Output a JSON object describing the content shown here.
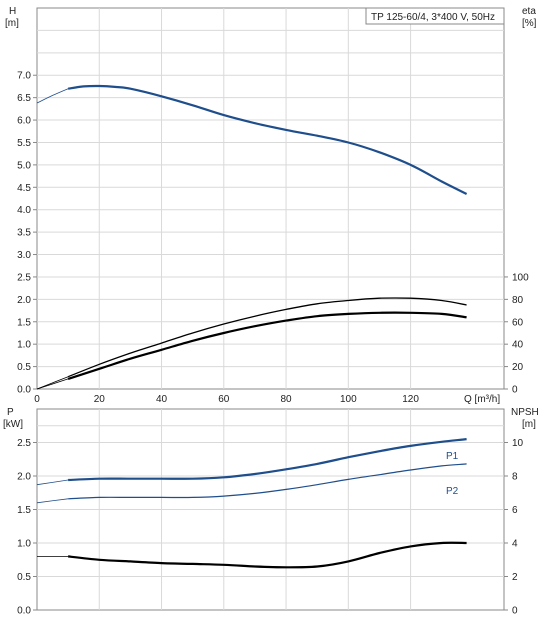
{
  "chart_data": [
    {
      "type": "line",
      "legend_box": "TP 125-60/4, 3*400 V, 50Hz",
      "x_axis": {
        "label": "Q [m³/h]",
        "ticks": [
          "0",
          "20",
          "40",
          "60",
          "80",
          "100",
          "120"
        ],
        "range": [
          0,
          150
        ]
      },
      "y_left": {
        "label_top": "H",
        "label_unit": "[m]",
        "ticks": [
          "0.0",
          "0.5",
          "1.0",
          "1.5",
          "2.0",
          "2.5",
          "3.0",
          "3.5",
          "4.0",
          "4.5",
          "5.0",
          "5.5",
          "6.0",
          "6.5",
          "7.0"
        ],
        "range": [
          0,
          8.5
        ]
      },
      "y_right": {
        "label_top": "eta",
        "label_unit": "[%]",
        "ticks": [
          "0",
          "20",
          "40",
          "60",
          "80",
          "100"
        ],
        "range": [
          0,
          100
        ]
      },
      "grid": true,
      "series": [
        {
          "axis": "left",
          "color": "#1f4e8c",
          "x": [
            0,
            5,
            10,
            15,
            20,
            25,
            30,
            40,
            50,
            60,
            70,
            80,
            90,
            100,
            110,
            120,
            130,
            138
          ],
          "y": [
            6.38,
            6.55,
            6.7,
            6.75,
            6.76,
            6.74,
            6.7,
            6.53,
            6.33,
            6.11,
            5.93,
            5.78,
            5.65,
            5.5,
            5.28,
            5.0,
            4.63,
            4.35
          ]
        },
        {
          "axis": "right",
          "color": "#000000",
          "x": [
            0,
            10,
            20,
            30,
            40,
            50,
            60,
            70,
            80,
            90,
            100,
            110,
            120,
            130,
            138
          ],
          "y": [
            0,
            11,
            22,
            32,
            41,
            50,
            58,
            65,
            71,
            76,
            79,
            81,
            81,
            79,
            75
          ]
        },
        {
          "axis": "right",
          "color": "#000000",
          "x": [
            0,
            10,
            20,
            30,
            40,
            50,
            60,
            70,
            80,
            90,
            100,
            110,
            120,
            130,
            138
          ],
          "y": [
            0,
            9,
            18,
            27,
            35,
            43,
            50,
            56,
            61,
            65,
            67,
            68,
            68,
            67,
            64
          ]
        }
      ]
    },
    {
      "type": "line",
      "x_axis": {
        "range": [
          0,
          150
        ]
      },
      "y_left": {
        "label_top": "P",
        "label_unit": "[kW]",
        "ticks": [
          "0.0",
          "0.5",
          "1.0",
          "1.5",
          "2.0",
          "2.5"
        ],
        "range": [
          0,
          3.0
        ]
      },
      "y_right": {
        "label_top": "NPSH",
        "label_unit": "[m]",
        "ticks": [
          "0",
          "2",
          "4",
          "6",
          "8",
          "10"
        ],
        "range": [
          0,
          12
        ]
      },
      "grid": true,
      "series": [
        {
          "name": "P1",
          "axis": "left",
          "color": "#1f4e8c",
          "x": [
            0,
            10,
            20,
            30,
            40,
            50,
            60,
            70,
            80,
            90,
            100,
            110,
            120,
            130,
            138
          ],
          "y": [
            1.87,
            1.94,
            1.96,
            1.96,
            1.96,
            1.96,
            1.98,
            2.03,
            2.1,
            2.18,
            2.28,
            2.37,
            2.45,
            2.51,
            2.55
          ]
        },
        {
          "name": "P2",
          "axis": "left",
          "color": "#1f4e8c",
          "x": [
            0,
            10,
            20,
            30,
            40,
            50,
            60,
            70,
            80,
            90,
            100,
            110,
            120,
            130,
            138
          ],
          "y": [
            1.6,
            1.66,
            1.68,
            1.68,
            1.68,
            1.68,
            1.7,
            1.74,
            1.8,
            1.87,
            1.95,
            2.02,
            2.09,
            2.15,
            2.18
          ]
        },
        {
          "axis": "right",
          "color": "#000000",
          "x": [
            0,
            10,
            20,
            30,
            40,
            50,
            60,
            70,
            80,
            90,
            100,
            110,
            120,
            130,
            138
          ],
          "y": [
            3.2,
            3.2,
            3.0,
            2.9,
            2.8,
            2.75,
            2.7,
            2.6,
            2.55,
            2.6,
            2.9,
            3.4,
            3.8,
            4.0,
            4.0
          ]
        }
      ]
    }
  ]
}
